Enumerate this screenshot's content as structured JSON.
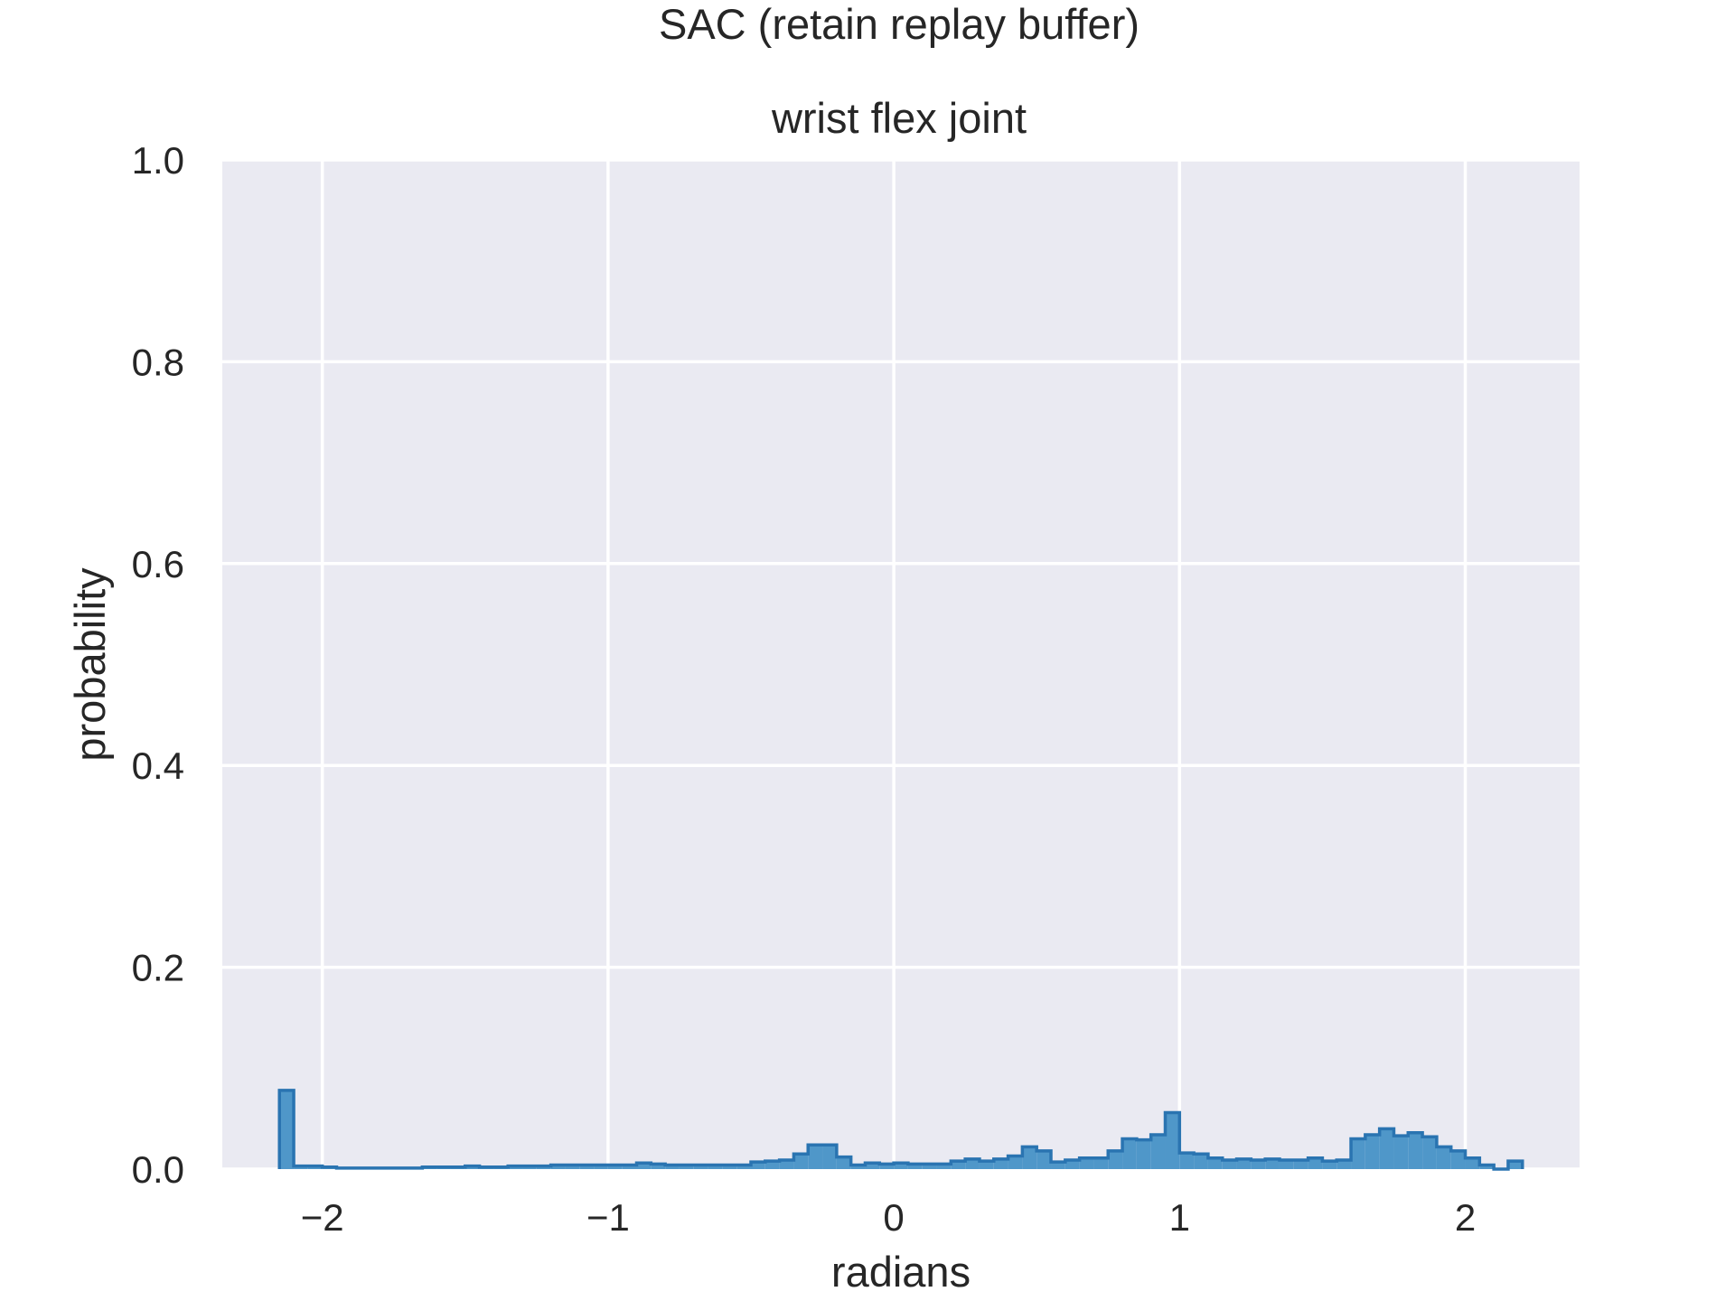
{
  "chart_data": {
    "type": "bar",
    "histtype": "stepfilled",
    "suptitle": "SAC (retain replay buffer)",
    "title": "wrist flex joint",
    "xlabel": "radians",
    "ylabel": "probability",
    "xlim": [
      -2.35,
      2.4
    ],
    "ylim": [
      0,
      1.0
    ],
    "xticks": [
      -2,
      -1,
      0,
      1,
      2
    ],
    "xtick_labels": [
      "−2",
      "−1",
      "0",
      "1",
      "2"
    ],
    "yticks": [
      0,
      0.2,
      0.4,
      0.6,
      0.8,
      1.0
    ],
    "ytick_labels": [
      "0.0",
      "0.2",
      "0.4",
      "0.6",
      "0.8",
      "1.0"
    ],
    "grid": true,
    "bin_edges": [
      -2.15,
      -2.1,
      -2.05,
      -2.0,
      -1.95,
      -1.9,
      -1.85,
      -1.8,
      -1.75,
      -1.7,
      -1.65,
      -1.6,
      -1.55,
      -1.5,
      -1.45,
      -1.4,
      -1.35,
      -1.3,
      -1.25,
      -1.2,
      -1.15,
      -1.1,
      -1.05,
      -1.0,
      -0.95,
      -0.9,
      -0.85,
      -0.8,
      -0.75,
      -0.7,
      -0.65,
      -0.6,
      -0.55,
      -0.5,
      -0.45,
      -0.4,
      -0.35,
      -0.3,
      -0.25,
      -0.2,
      -0.15,
      -0.1,
      -0.05,
      0.0,
      0.05,
      0.1,
      0.15,
      0.2,
      0.25,
      0.3,
      0.35,
      0.4,
      0.45,
      0.5,
      0.55,
      0.6,
      0.65,
      0.7,
      0.75,
      0.8,
      0.85,
      0.9,
      0.95,
      1.0,
      1.05,
      1.1,
      1.15,
      1.2,
      1.25,
      1.3,
      1.35,
      1.4,
      1.45,
      1.5,
      1.55,
      1.6,
      1.65,
      1.7,
      1.75,
      1.8,
      1.85,
      1.9,
      1.95,
      2.0,
      2.05,
      2.1,
      2.15,
      2.2
    ],
    "values": [
      0.078,
      0.003,
      0.003,
      0.002,
      0.001,
      0.001,
      0.001,
      0.001,
      0.001,
      0.001,
      0.002,
      0.002,
      0.002,
      0.003,
      0.002,
      0.002,
      0.003,
      0.003,
      0.003,
      0.004,
      0.004,
      0.004,
      0.004,
      0.004,
      0.004,
      0.006,
      0.005,
      0.004,
      0.004,
      0.004,
      0.004,
      0.004,
      0.004,
      0.007,
      0.008,
      0.009,
      0.015,
      0.024,
      0.024,
      0.012,
      0.004,
      0.006,
      0.005,
      0.006,
      0.005,
      0.005,
      0.005,
      0.008,
      0.01,
      0.008,
      0.01,
      0.013,
      0.022,
      0.018,
      0.007,
      0.009,
      0.011,
      0.011,
      0.018,
      0.03,
      0.029,
      0.034,
      0.056,
      0.016,
      0.015,
      0.011,
      0.009,
      0.01,
      0.009,
      0.01,
      0.009,
      0.009,
      0.011,
      0.008,
      0.009,
      0.03,
      0.034,
      0.04,
      0.033,
      0.036,
      0.032,
      0.022,
      0.018,
      0.011,
      0.004,
      0.0,
      0.008
    ],
    "colors": {
      "fill": "#4f97c9",
      "edge": "#2a74b1",
      "plot_bg": "#eaeaf2",
      "grid": "#ffffff"
    }
  }
}
